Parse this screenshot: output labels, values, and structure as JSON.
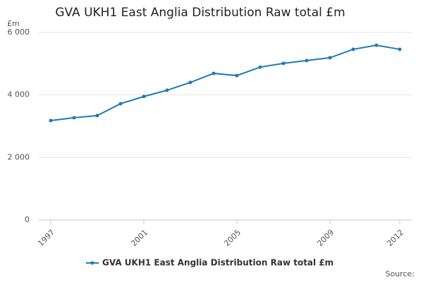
{
  "chart_data": {
    "type": "line",
    "title": "GVA UKH1 East Anglia Distribution Raw total £m",
    "y_unit": "£m",
    "source": "Source:",
    "x": [
      1997,
      1998,
      1999,
      2000,
      2001,
      2002,
      2003,
      2004,
      2005,
      2006,
      2007,
      2008,
      2009,
      2010,
      2011,
      2012
    ],
    "series": [
      {
        "name": "GVA UKH1 East Anglia Distribution Raw total £m",
        "color": "#1f7bb6",
        "values": [
          3180,
          3270,
          3340,
          3720,
          3950,
          4150,
          4400,
          4690,
          4620,
          4890,
          5010,
          5100,
          5190,
          5460,
          5590,
          5460
        ]
      }
    ],
    "xlim": [
      1997,
      2012
    ],
    "xticks": [
      1997,
      2001,
      2005,
      2009,
      2012
    ],
    "ylim": [
      0,
      6000
    ],
    "yticks": [
      0,
      {
        "value": 2000,
        "label": "2 000"
      },
      {
        "value": 4000,
        "label": "4 000"
      },
      {
        "value": 6000,
        "label": "6 000"
      }
    ],
    "grid": true
  }
}
